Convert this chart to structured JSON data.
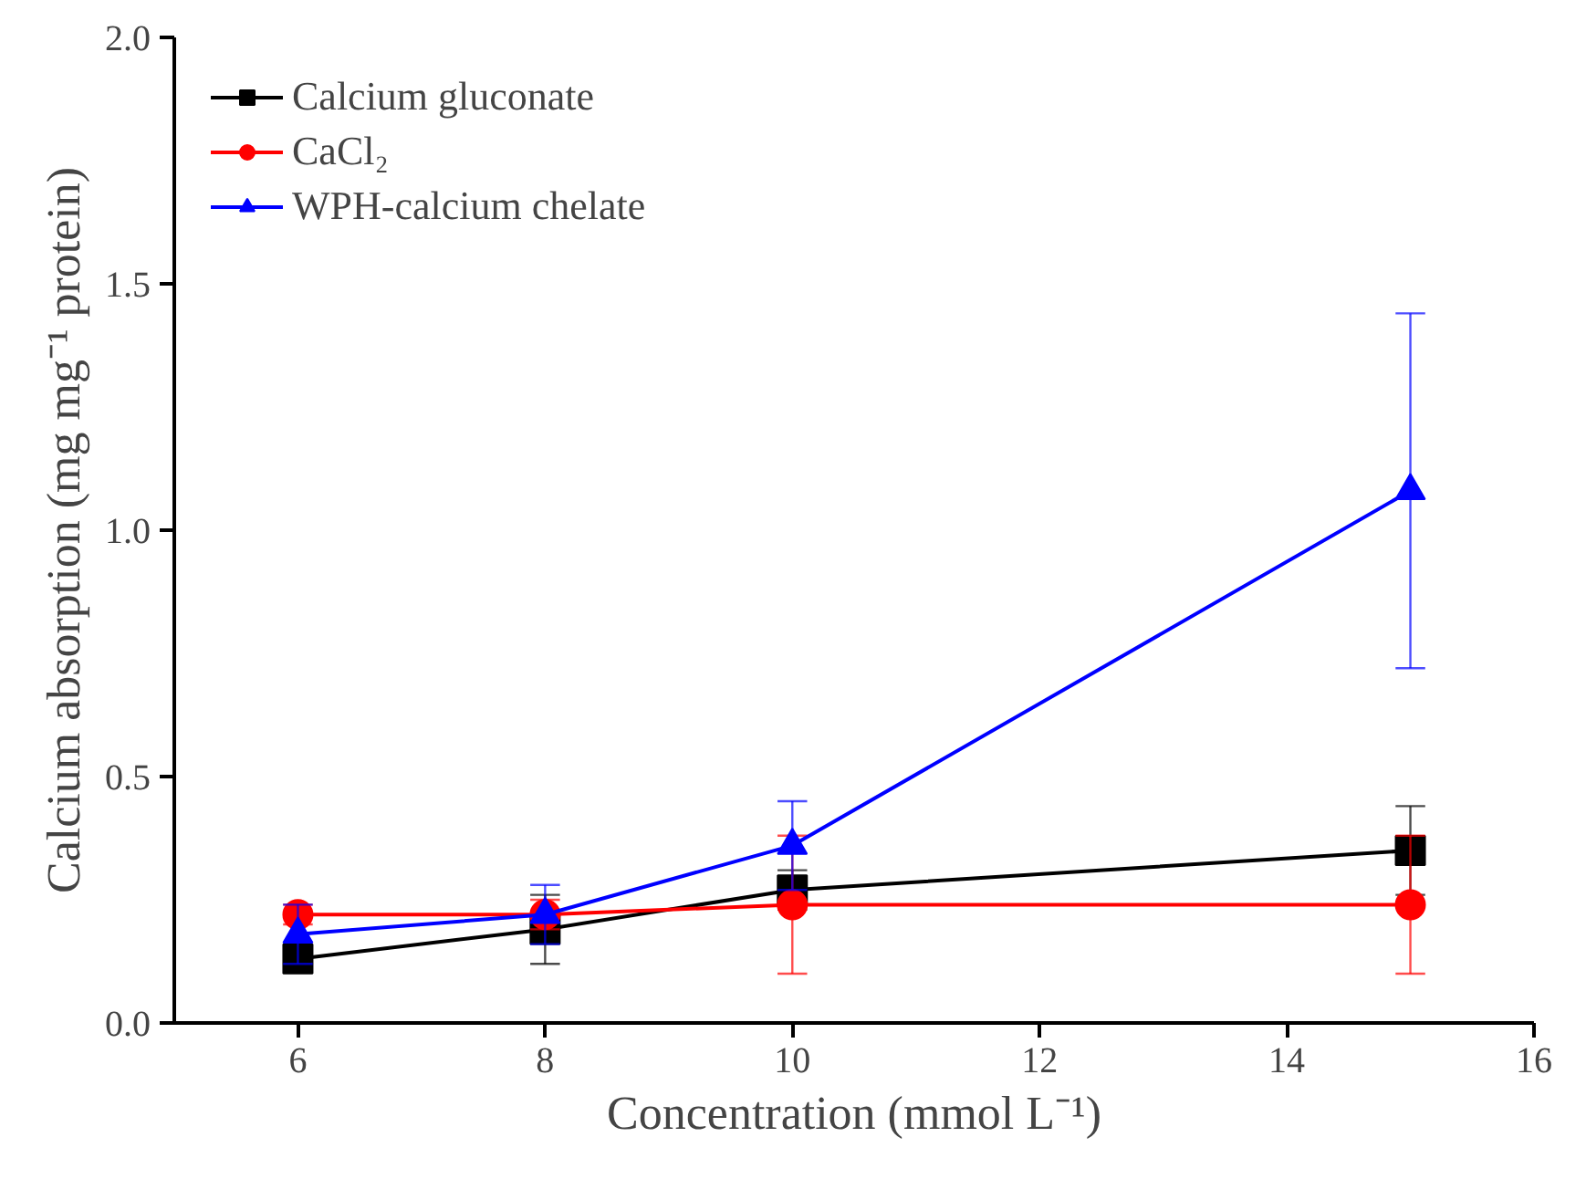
{
  "chart_data": {
    "type": "line",
    "xlabel": "Concentration (mmol L⁻¹)",
    "ylabel": "Calcium absorption (mg mg⁻¹ protein)",
    "x": [
      6,
      8,
      10,
      15
    ],
    "series": [
      {
        "name": "Calcium gluconate",
        "color": "#000000",
        "marker": "square",
        "values": [
          0.13,
          0.19,
          0.27,
          0.35
        ],
        "errors": [
          null,
          0.07,
          0.04,
          0.09
        ]
      },
      {
        "name": "CaCl₂",
        "color": "#ff0000",
        "marker": "circle",
        "values": [
          0.22,
          0.22,
          0.24,
          0.24
        ],
        "errors": [
          0.02,
          0.03,
          0.14,
          0.14
        ]
      },
      {
        "name": "WPH-calcium chelate",
        "color": "#0000ff",
        "marker": "triangle",
        "values": [
          0.18,
          0.22,
          0.36,
          1.08
        ],
        "errors": [
          0.06,
          0.06,
          0.09,
          0.36
        ]
      }
    ],
    "xlim": [
      5,
      16
    ],
    "xticks": [
      6,
      8,
      10,
      12,
      14,
      16
    ],
    "ylim": [
      0,
      2
    ],
    "yticks": [
      {
        "value": 0,
        "label": "0.0"
      },
      {
        "value": 0.5,
        "label": "0.5"
      },
      {
        "value": 1,
        "label": "1.0"
      },
      {
        "value": 1.5,
        "label": "1.5"
      },
      {
        "value": 2,
        "label": "2.0"
      }
    ],
    "grid": false,
    "legend": "top left",
    "line_style": "solid"
  }
}
